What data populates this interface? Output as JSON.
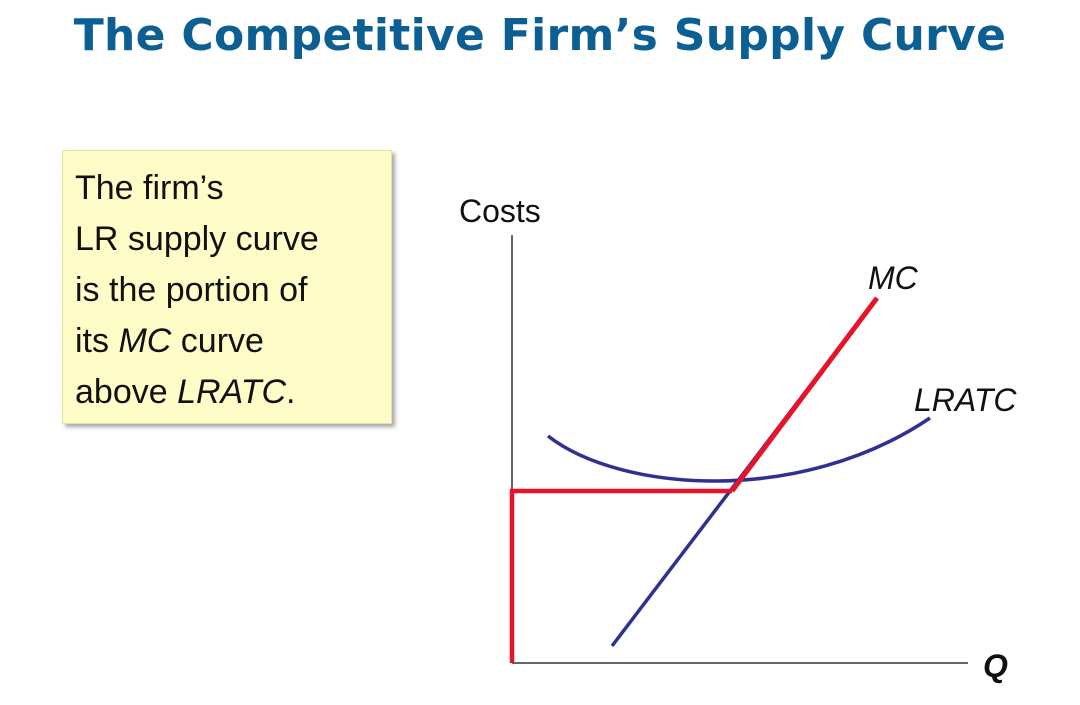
{
  "title": "The Competitive Firm’s Supply Curve",
  "note": {
    "line1": "The firm’s",
    "line2": "LR supply curve",
    "line3": "is the portion of",
    "line4_pre": "its ",
    "line4_italic": "MC",
    "line4_post": " curve",
    "line5_pre": "above ",
    "line5_italic": "LRATC",
    "line5_post": "."
  },
  "diagram": {
    "y_axis_label": "Costs",
    "x_axis_label": "Q",
    "curves": [
      {
        "name": "MC",
        "color": "#2e3192"
      },
      {
        "name": "LRATC",
        "color": "#2e3192"
      }
    ],
    "supply_curve_color": "#e8132a",
    "axis_color": "#333333"
  }
}
